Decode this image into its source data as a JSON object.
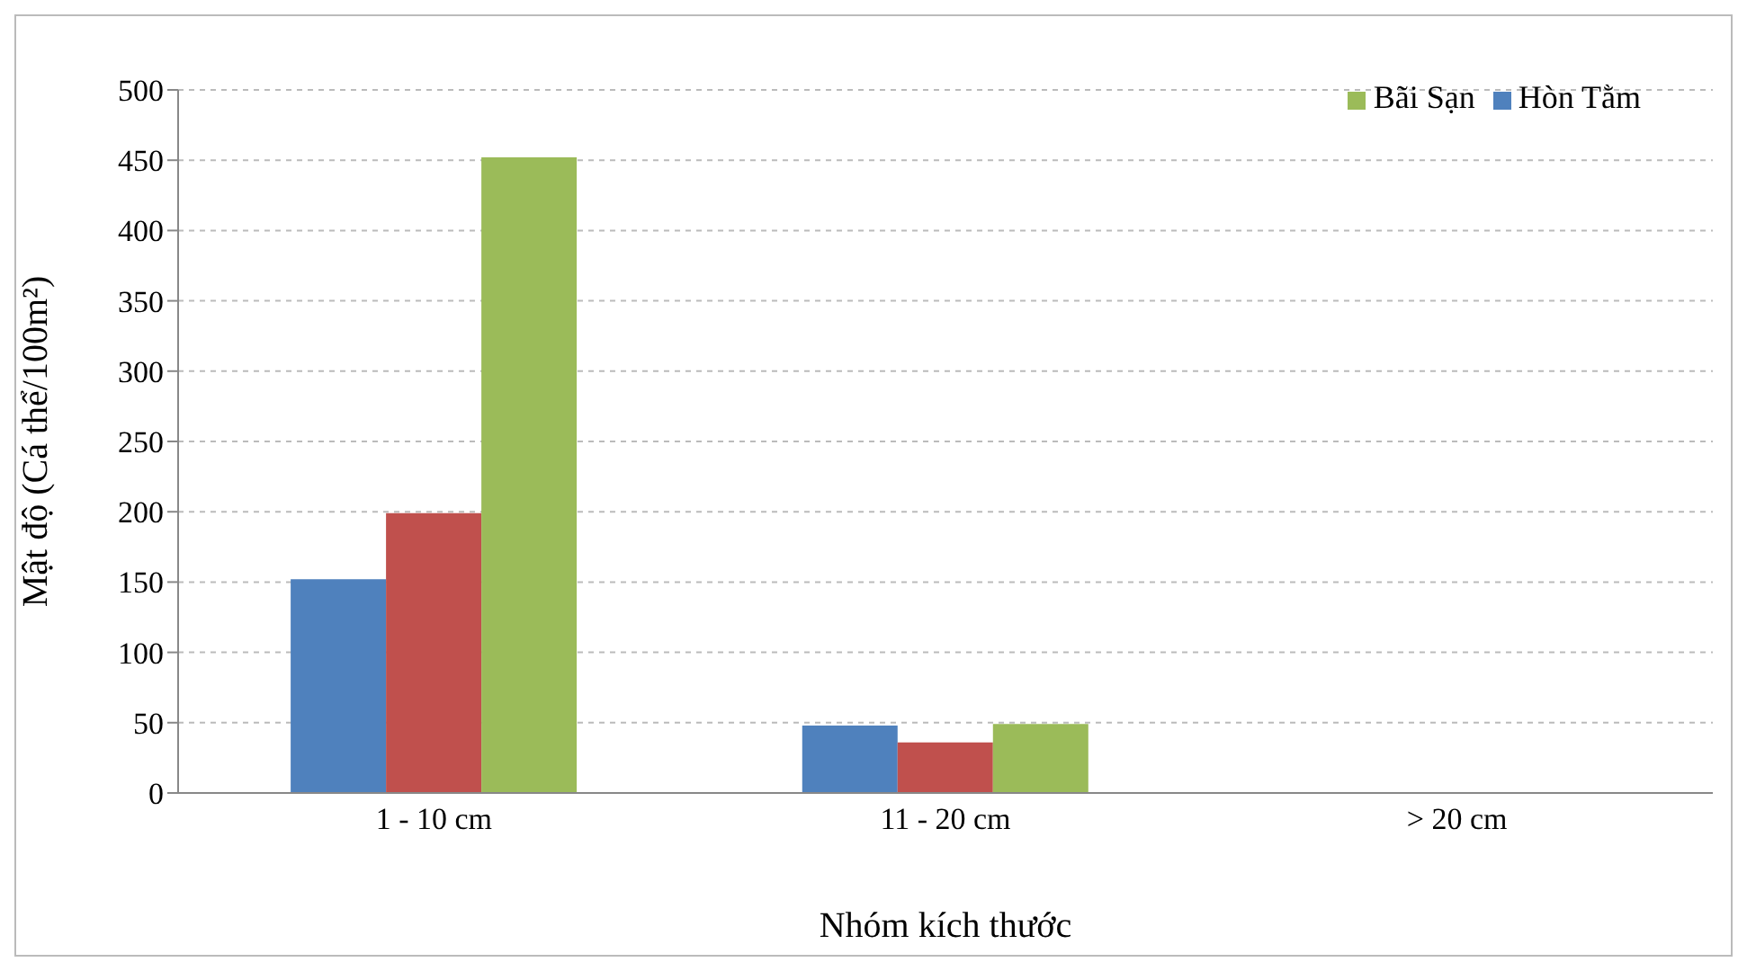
{
  "chart_data": {
    "type": "bar",
    "xlabel": "Nhóm kích thước",
    "ylabel": "Mật độ (Cá thể/100m²)",
    "categories": [
      "1 - 10 cm",
      "11 - 20 cm",
      "> 20 cm"
    ],
    "series": [
      {
        "name": "Hòn Tằm",
        "color": "#4f81bd",
        "values": [
          152,
          48,
          0
        ]
      },
      {
        "color": "#c0504d",
        "values": [
          199,
          36,
          0
        ]
      },
      {
        "name": "Bãi Sạn",
        "color": "#9bbb59",
        "values": [
          452,
          49,
          0
        ]
      }
    ],
    "ylim": [
      0,
      500
    ],
    "yticks": [
      0,
      50,
      100,
      150,
      200,
      250,
      300,
      350,
      400,
      450,
      500
    ],
    "grid": "y",
    "legend": "top right"
  }
}
